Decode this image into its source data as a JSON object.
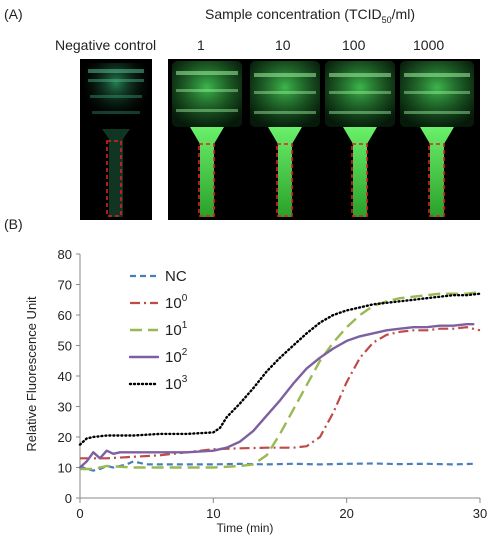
{
  "panel_a": {
    "label": "(A)",
    "header_prefix": "Sample concentration (TCID",
    "header_sub": "50",
    "header_suffix": "/ml)",
    "negative_label": "Negative control",
    "concentrations": [
      "1",
      "10",
      "100",
      "1000"
    ]
  },
  "panel_b": {
    "label": "(B)"
  },
  "colors": {
    "NC": "#4a7ebb",
    "e0": "#be4b48",
    "e1": "#98b954",
    "e2": "#7d60a0",
    "e3": "#000000",
    "roi": "#e02020",
    "glow": "#3cf03c"
  },
  "chart_data": {
    "type": "line",
    "xlabel": "Time (min)",
    "ylabel": "Relative Fluorescence Unit",
    "xlim": [
      0,
      30
    ],
    "ylim": [
      0,
      80
    ],
    "x_ticks": [
      "0",
      "10",
      "20",
      "30"
    ],
    "y_ticks": [
      "0",
      "10",
      "20",
      "30",
      "40",
      "50",
      "60",
      "70",
      "80"
    ],
    "legend_position": "top-left",
    "series": [
      {
        "name": "NC",
        "base": "NC",
        "exp": "",
        "style": "dashed",
        "x": [
          0,
          0.5,
          1,
          1.5,
          2,
          2.5,
          3,
          3.5,
          4,
          4.5,
          5,
          6,
          8,
          10,
          12,
          14,
          16,
          18,
          20,
          22,
          24,
          26,
          28,
          29.5
        ],
        "y": [
          10.5,
          9.5,
          9,
          9.5,
          10.5,
          10,
          10.5,
          11,
          12,
          11.5,
          11,
          11,
          11,
          11,
          11.2,
          11,
          11.2,
          11,
          11.2,
          11.3,
          11.1,
          11.2,
          11,
          11.2
        ]
      },
      {
        "name": "10^0",
        "base": "10",
        "exp": "0",
        "style": "dashdot",
        "x": [
          0,
          2,
          4,
          6,
          8,
          10,
          12,
          14,
          16,
          17,
          18,
          19,
          20,
          21,
          22,
          23,
          24,
          25,
          26,
          27,
          28,
          29,
          30
        ],
        "y": [
          13,
          13,
          13.5,
          14,
          15,
          16,
          16.3,
          16.5,
          16.5,
          17,
          20,
          28,
          38,
          46,
          51,
          53.5,
          54.5,
          55,
          55,
          55.5,
          55.5,
          56,
          55
        ]
      },
      {
        "name": "10^1",
        "base": "10",
        "exp": "1",
        "style": "longdash",
        "x": [
          0,
          1,
          2,
          4,
          6,
          8,
          10,
          12,
          13,
          14,
          15,
          16,
          17,
          18,
          19,
          20,
          21,
          22,
          23,
          24,
          25,
          26,
          27,
          28,
          29,
          30
        ],
        "y": [
          9.5,
          9.5,
          10.5,
          10,
          10,
          10,
          10,
          10.5,
          11,
          14,
          21,
          29,
          37,
          45,
          51,
          56,
          60,
          63,
          64.5,
          65.5,
          66,
          66.5,
          67,
          67,
          67,
          67.5
        ]
      },
      {
        "name": "10^2",
        "base": "10",
        "exp": "2",
        "style": "solid",
        "x": [
          0,
          0.5,
          1,
          1.5,
          2,
          2.5,
          3,
          4,
          6,
          8,
          10,
          11,
          12,
          13,
          14,
          15,
          16,
          17,
          18,
          19,
          20,
          21,
          22,
          23,
          24,
          25,
          26,
          27,
          28,
          29,
          29.5
        ],
        "y": [
          10,
          12,
          15,
          13,
          15.5,
          14.5,
          15,
          15,
          15,
          15,
          15.5,
          16.5,
          18.5,
          22,
          27,
          32,
          37.5,
          42.5,
          46,
          49,
          51.5,
          53,
          54,
          55,
          55.5,
          56,
          56,
          56.5,
          56.5,
          57,
          57
        ]
      },
      {
        "name": "10^3",
        "base": "10",
        "exp": "3",
        "style": "dotted",
        "x": [
          0,
          0.5,
          1,
          2,
          4,
          6,
          8,
          10,
          10.5,
          11,
          12,
          13,
          14,
          15,
          16,
          17,
          18,
          19,
          20,
          21,
          22,
          23,
          24,
          25,
          26,
          27,
          28,
          29,
          30
        ],
        "y": [
          17.5,
          19.5,
          20,
          20.5,
          20.5,
          21,
          21,
          21.5,
          23,
          26.5,
          31,
          36,
          41.5,
          46,
          50,
          54,
          57.5,
          60,
          61.5,
          62.5,
          63.5,
          64,
          64.5,
          65,
          65.5,
          66,
          66.5,
          66.5,
          67
        ]
      }
    ]
  }
}
